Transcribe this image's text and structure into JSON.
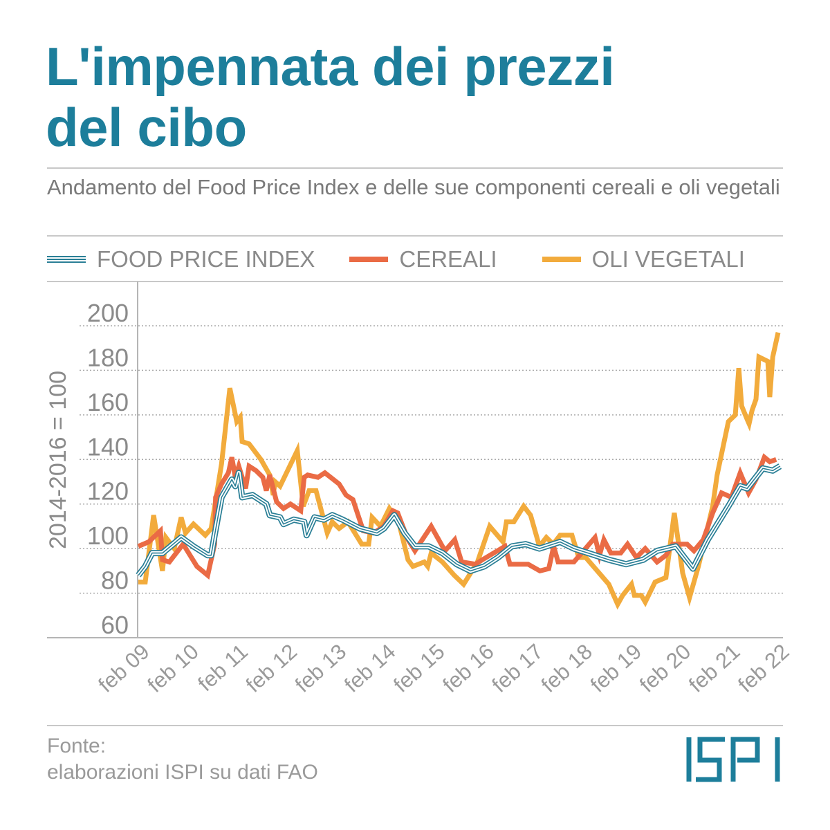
{
  "header": {
    "title_line1": "L'impennata dei prezzi",
    "title_line2": "del cibo",
    "subtitle": "Andamento del Food Price Index e delle sue componenti cereali e oli vegetali"
  },
  "legend": [
    {
      "label": "FOOD PRICE INDEX",
      "color": "#2a7f96"
    },
    {
      "label": "CEREALI",
      "color": "#ea6b45"
    },
    {
      "label": "OLI VEGETALI",
      "color": "#f2ab3c"
    }
  ],
  "footer": {
    "source_label": "Fonte:",
    "source_text": "elaborazioni ISPI su dati FAO",
    "logo_text": "ISPI"
  },
  "chart_data": {
    "type": "line",
    "title": "L'impennata dei prezzi del cibo",
    "xlabel": "",
    "ylabel": "2014-2016 = 100",
    "ylim": [
      60,
      200
    ],
    "xlim": [
      2009,
      2022
    ],
    "yticks": [
      60,
      80,
      100,
      120,
      140,
      160,
      180,
      200
    ],
    "xticks": [
      {
        "x": 2009,
        "label": "feb 09"
      },
      {
        "x": 2010,
        "label": "feb 10"
      },
      {
        "x": 2011,
        "label": "feb 11"
      },
      {
        "x": 2012,
        "label": "feb 12"
      },
      {
        "x": 2013,
        "label": "feb 13"
      },
      {
        "x": 2014,
        "label": "feb 14"
      },
      {
        "x": 2015,
        "label": "feb 15"
      },
      {
        "x": 2016,
        "label": "feb 16"
      },
      {
        "x": 2017,
        "label": "feb 17"
      },
      {
        "x": 2018,
        "label": "feb 18"
      },
      {
        "x": 2019,
        "label": "feb 19"
      },
      {
        "x": 2020,
        "label": "feb 20"
      },
      {
        "x": 2021,
        "label": "feb 21"
      },
      {
        "x": 2022,
        "label": "feb 22"
      }
    ],
    "grid": "horizontal-dotted",
    "legend_position": "top",
    "series": [
      {
        "name": "FOOD PRICE INDEX",
        "color": "#2a7f96",
        "style": "triple",
        "points": [
          [
            2009.0,
            88
          ],
          [
            2009.14,
            92
          ],
          [
            2009.28,
            98
          ],
          [
            2009.49,
            98
          ],
          [
            2009.87,
            105
          ],
          [
            2010.12,
            101
          ],
          [
            2010.41,
            97
          ],
          [
            2010.48,
            97
          ],
          [
            2010.55,
            106
          ],
          [
            2010.69,
            123
          ],
          [
            2010.9,
            131
          ],
          [
            2010.97,
            128
          ],
          [
            2011.04,
            134
          ],
          [
            2011.11,
            123
          ],
          [
            2011.32,
            124
          ],
          [
            2011.6,
            120
          ],
          [
            2011.67,
            115
          ],
          [
            2011.88,
            114
          ],
          [
            2011.95,
            111
          ],
          [
            2012.16,
            113
          ],
          [
            2012.37,
            112
          ],
          [
            2012.42,
            106
          ],
          [
            2012.58,
            114
          ],
          [
            2012.77,
            113
          ],
          [
            2012.94,
            115
          ],
          [
            2013.15,
            113
          ],
          [
            2013.5,
            109
          ],
          [
            2013.85,
            107
          ],
          [
            2013.99,
            109
          ],
          [
            2014.2,
            115
          ],
          [
            2014.41,
            107
          ],
          [
            2014.62,
            101
          ],
          [
            2014.9,
            101
          ],
          [
            2015.18,
            98
          ],
          [
            2015.47,
            93
          ],
          [
            2015.75,
            90
          ],
          [
            2016.03,
            92
          ],
          [
            2016.31,
            96
          ],
          [
            2016.59,
            101
          ],
          [
            2016.87,
            102
          ],
          [
            2017.15,
            100
          ],
          [
            2017.57,
            103
          ],
          [
            2017.85,
            100
          ],
          [
            2018.14,
            98
          ],
          [
            2018.56,
            95
          ],
          [
            2018.91,
            93
          ],
          [
            2019.26,
            95
          ],
          [
            2019.54,
            99
          ],
          [
            2019.92,
            101
          ],
          [
            2020.27,
            91
          ],
          [
            2020.57,
            104
          ],
          [
            2020.99,
            119
          ],
          [
            2021.23,
            128
          ],
          [
            2021.37,
            127
          ],
          [
            2021.69,
            136
          ],
          [
            2021.89,
            135
          ],
          [
            2022.04,
            137
          ]
        ]
      },
      {
        "name": "CEREALI",
        "color": "#ea6b45",
        "style": "solid",
        "points": [
          [
            2009.0,
            101
          ],
          [
            2009.21,
            103
          ],
          [
            2009.45,
            108
          ],
          [
            2009.49,
            95
          ],
          [
            2009.63,
            94
          ],
          [
            2009.91,
            102
          ],
          [
            2010.19,
            92
          ],
          [
            2010.41,
            88
          ],
          [
            2010.55,
            102
          ],
          [
            2010.57,
            123
          ],
          [
            2010.69,
            129
          ],
          [
            2010.83,
            134
          ],
          [
            2010.9,
            141
          ],
          [
            2010.97,
            132
          ],
          [
            2011.04,
            137
          ],
          [
            2011.18,
            127
          ],
          [
            2011.25,
            137
          ],
          [
            2011.39,
            135
          ],
          [
            2011.53,
            132
          ],
          [
            2011.6,
            126
          ],
          [
            2011.67,
            133
          ],
          [
            2011.81,
            121
          ],
          [
            2011.95,
            118
          ],
          [
            2012.09,
            120
          ],
          [
            2012.3,
            117
          ],
          [
            2012.37,
            132
          ],
          [
            2012.44,
            133
          ],
          [
            2012.65,
            132
          ],
          [
            2012.79,
            134
          ],
          [
            2013.08,
            129
          ],
          [
            2013.22,
            124
          ],
          [
            2013.36,
            122
          ],
          [
            2013.57,
            108
          ],
          [
            2013.78,
            107
          ],
          [
            2013.99,
            110
          ],
          [
            2014.17,
            117
          ],
          [
            2014.27,
            116
          ],
          [
            2014.48,
            104
          ],
          [
            2014.62,
            99
          ],
          [
            2014.95,
            110
          ],
          [
            2015.23,
            99
          ],
          [
            2015.43,
            104
          ],
          [
            2015.57,
            94
          ],
          [
            2015.85,
            93
          ],
          [
            2015.99,
            95
          ],
          [
            2016.45,
            101
          ],
          [
            2016.55,
            93
          ],
          [
            2016.92,
            93
          ],
          [
            2017.16,
            90
          ],
          [
            2017.34,
            91
          ],
          [
            2017.44,
            101
          ],
          [
            2017.53,
            94
          ],
          [
            2017.85,
            94
          ],
          [
            2018.28,
            105
          ],
          [
            2018.37,
            97
          ],
          [
            2018.46,
            104
          ],
          [
            2018.6,
            98
          ],
          [
            2018.8,
            98
          ],
          [
            2018.94,
            102
          ],
          [
            2019.12,
            96
          ],
          [
            2019.3,
            100
          ],
          [
            2019.54,
            94
          ],
          [
            2019.72,
            97
          ],
          [
            2019.86,
            102
          ],
          [
            2020.15,
            102
          ],
          [
            2020.29,
            99
          ],
          [
            2020.48,
            104
          ],
          [
            2020.67,
            116
          ],
          [
            2020.85,
            125
          ],
          [
            2021.05,
            123
          ],
          [
            2021.23,
            134
          ],
          [
            2021.4,
            125
          ],
          [
            2021.55,
            131
          ],
          [
            2021.72,
            141
          ],
          [
            2021.83,
            139
          ],
          [
            2021.96,
            140
          ]
        ]
      },
      {
        "name": "OLI VEGETALI",
        "color": "#f2ab3c",
        "style": "solid",
        "points": [
          [
            2009.0,
            85
          ],
          [
            2009.14,
            85
          ],
          [
            2009.31,
            115
          ],
          [
            2009.49,
            90
          ],
          [
            2009.56,
            105
          ],
          [
            2009.73,
            100
          ],
          [
            2009.87,
            114
          ],
          [
            2009.96,
            107
          ],
          [
            2010.12,
            111
          ],
          [
            2010.36,
            106
          ],
          [
            2010.48,
            109
          ],
          [
            2010.69,
            138
          ],
          [
            2010.86,
            172
          ],
          [
            2011.0,
            157
          ],
          [
            2011.07,
            159
          ],
          [
            2011.11,
            148
          ],
          [
            2011.25,
            147
          ],
          [
            2011.49,
            140
          ],
          [
            2011.67,
            133
          ],
          [
            2011.74,
            124
          ],
          [
            2011.78,
            130
          ],
          [
            2011.88,
            128
          ],
          [
            2012.23,
            144
          ],
          [
            2012.35,
            119
          ],
          [
            2012.47,
            126
          ],
          [
            2012.61,
            126
          ],
          [
            2012.84,
            107
          ],
          [
            2012.94,
            112
          ],
          [
            2013.08,
            109
          ],
          [
            2013.26,
            112
          ],
          [
            2013.54,
            102
          ],
          [
            2013.68,
            102
          ],
          [
            2013.75,
            114
          ],
          [
            2013.92,
            110
          ],
          [
            2014.1,
            118
          ],
          [
            2014.3,
            111
          ],
          [
            2014.48,
            95
          ],
          [
            2014.58,
            92
          ],
          [
            2014.81,
            94
          ],
          [
            2014.88,
            92
          ],
          [
            2014.95,
            98
          ],
          [
            2015.18,
            94
          ],
          [
            2015.42,
            88
          ],
          [
            2015.61,
            84
          ],
          [
            2015.75,
            89
          ],
          [
            2015.89,
            94
          ],
          [
            2016.14,
            110
          ],
          [
            2016.41,
            103
          ],
          [
            2016.48,
            112
          ],
          [
            2016.63,
            112
          ],
          [
            2016.83,
            119
          ],
          [
            2016.97,
            115
          ],
          [
            2017.15,
            101
          ],
          [
            2017.29,
            105
          ],
          [
            2017.43,
            102
          ],
          [
            2017.57,
            106
          ],
          [
            2017.81,
            106
          ],
          [
            2017.95,
            96
          ],
          [
            2018.09,
            96
          ],
          [
            2018.56,
            84
          ],
          [
            2018.74,
            75
          ],
          [
            2018.84,
            79
          ],
          [
            2019.02,
            84
          ],
          [
            2019.08,
            79
          ],
          [
            2019.22,
            79
          ],
          [
            2019.3,
            76
          ],
          [
            2019.5,
            85
          ],
          [
            2019.72,
            87
          ],
          [
            2019.89,
            116
          ],
          [
            2020.06,
            89
          ],
          [
            2020.2,
            78
          ],
          [
            2020.38,
            92
          ],
          [
            2020.67,
            119
          ],
          [
            2020.76,
            133
          ],
          [
            2020.99,
            157
          ],
          [
            2021.13,
            160
          ],
          [
            2021.2,
            181
          ],
          [
            2021.26,
            164
          ],
          [
            2021.37,
            158
          ],
          [
            2021.41,
            156
          ],
          [
            2021.47,
            162
          ],
          [
            2021.55,
            167
          ],
          [
            2021.61,
            186
          ],
          [
            2021.79,
            184
          ],
          [
            2021.83,
            168
          ],
          [
            2021.89,
            186
          ],
          [
            2022.0,
            197
          ]
        ]
      }
    ]
  }
}
